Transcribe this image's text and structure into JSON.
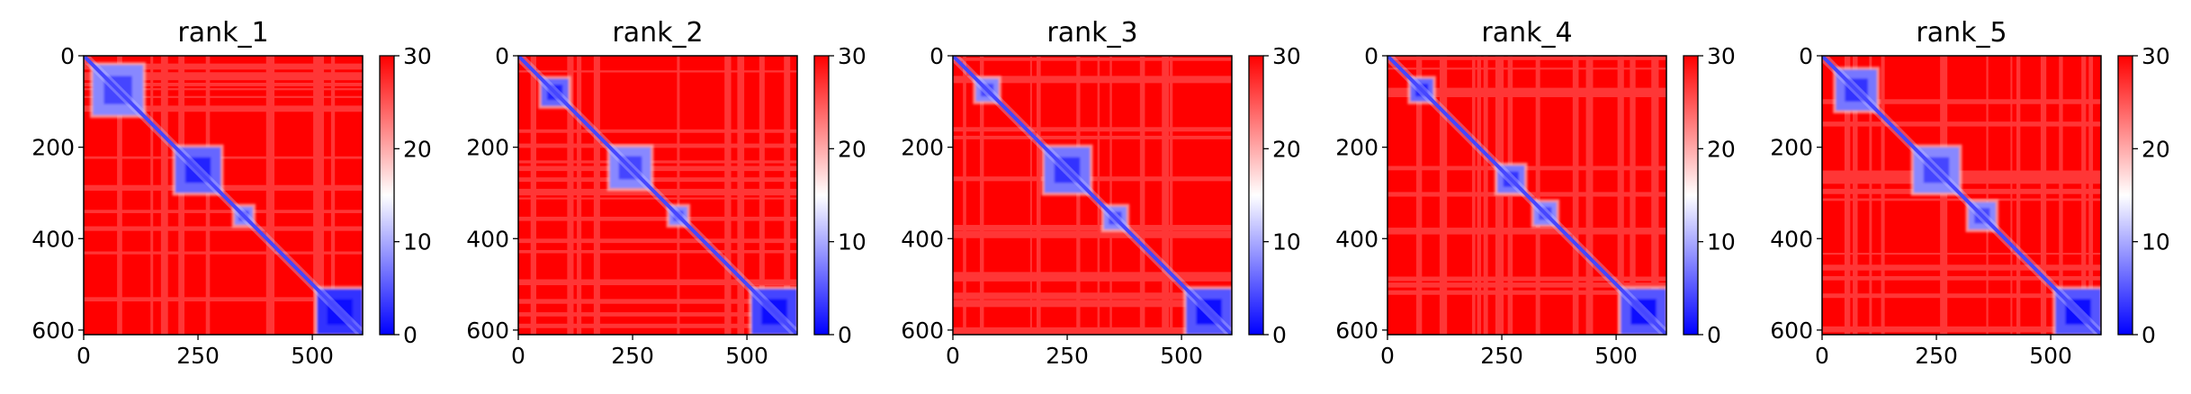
{
  "chart_data": [
    {
      "type": "heatmap",
      "title": "rank_1",
      "xlabel": "",
      "ylabel": "",
      "xlim": [
        0,
        610
      ],
      "ylim": [
        610,
        0
      ],
      "xticks": [
        "0",
        "250",
        "500"
      ],
      "xtick_values": [
        0,
        250,
        500
      ],
      "yticks": [
        "0",
        "200",
        "400",
        "600"
      ],
      "ytick_values": [
        0,
        200,
        400,
        600
      ],
      "colorbar": {
        "min": 0,
        "max": 30,
        "ticks": [
          "0",
          "10",
          "20",
          "30"
        ],
        "tick_values": [
          0,
          10,
          20,
          30
        ],
        "colormap": [
          "#0000ff",
          "#ffffff",
          "#ff0000"
        ]
      },
      "grid": false,
      "description_of_values": {
        "diagonal_value": 0,
        "background_value": 30,
        "low_value_blocks": [
          {
            "start": 20,
            "end": 130,
            "value": 8
          },
          {
            "start": 200,
            "end": 300,
            "value": 6
          },
          {
            "start": 330,
            "end": 370,
            "value": 8
          },
          {
            "start": 510,
            "end": 610,
            "value": 3
          }
        ]
      }
    },
    {
      "type": "heatmap",
      "title": "rank_2",
      "xlabel": "",
      "ylabel": "",
      "xlim": [
        0,
        610
      ],
      "ylim": [
        610,
        0
      ],
      "xticks": [
        "0",
        "250",
        "500"
      ],
      "xtick_values": [
        0,
        250,
        500
      ],
      "yticks": [
        "0",
        "200",
        "400",
        "600"
      ],
      "ytick_values": [
        0,
        200,
        400,
        600
      ],
      "colorbar": {
        "min": 0,
        "max": 30,
        "ticks": [
          "0",
          "10",
          "20",
          "30"
        ],
        "tick_values": [
          0,
          10,
          20,
          30
        ],
        "colormap": [
          "#0000ff",
          "#ffffff",
          "#ff0000"
        ]
      },
      "grid": false,
      "description_of_values": {
        "diagonal_value": 0,
        "background_value": 30,
        "low_value_blocks": [
          {
            "start": 50,
            "end": 110,
            "value": 6
          },
          {
            "start": 200,
            "end": 290,
            "value": 8
          },
          {
            "start": 330,
            "end": 370,
            "value": 8
          },
          {
            "start": 510,
            "end": 610,
            "value": 4
          }
        ]
      }
    },
    {
      "type": "heatmap",
      "title": "rank_3",
      "xlabel": "",
      "ylabel": "",
      "xlim": [
        0,
        610
      ],
      "ylim": [
        610,
        0
      ],
      "xticks": [
        "0",
        "250",
        "500"
      ],
      "xtick_values": [
        0,
        250,
        500
      ],
      "yticks": [
        "0",
        "200",
        "400",
        "600"
      ],
      "ytick_values": [
        0,
        200,
        400,
        600
      ],
      "colorbar": {
        "min": 0,
        "max": 30,
        "ticks": [
          "0",
          "10",
          "20",
          "30"
        ],
        "tick_values": [
          0,
          10,
          20,
          30
        ],
        "colormap": [
          "#0000ff",
          "#ffffff",
          "#ff0000"
        ]
      },
      "grid": false,
      "description_of_values": {
        "diagonal_value": 0,
        "background_value": 30,
        "low_value_blocks": [
          {
            "start": 50,
            "end": 100,
            "value": 8
          },
          {
            "start": 200,
            "end": 300,
            "value": 7
          },
          {
            "start": 330,
            "end": 380,
            "value": 8
          },
          {
            "start": 510,
            "end": 610,
            "value": 5
          }
        ]
      }
    },
    {
      "type": "heatmap",
      "title": "rank_4",
      "xlabel": "",
      "ylabel": "",
      "xlim": [
        0,
        610
      ],
      "ylim": [
        610,
        0
      ],
      "xticks": [
        "0",
        "250",
        "500"
      ],
      "xtick_values": [
        0,
        250,
        500
      ],
      "yticks": [
        "0",
        "200",
        "400",
        "600"
      ],
      "ytick_values": [
        0,
        200,
        400,
        600
      ],
      "colorbar": {
        "min": 0,
        "max": 30,
        "ticks": [
          "0",
          "10",
          "20",
          "30"
        ],
        "tick_values": [
          0,
          10,
          20,
          30
        ],
        "colormap": [
          "#0000ff",
          "#ffffff",
          "#ff0000"
        ]
      },
      "grid": false,
      "description_of_values": {
        "diagonal_value": 0,
        "background_value": 30,
        "low_value_blocks": [
          {
            "start": 50,
            "end": 100,
            "value": 6
          },
          {
            "start": 240,
            "end": 300,
            "value": 7
          },
          {
            "start": 320,
            "end": 370,
            "value": 8
          },
          {
            "start": 510,
            "end": 610,
            "value": 5
          }
        ]
      }
    },
    {
      "type": "heatmap",
      "title": "rank_5",
      "xlabel": "",
      "ylabel": "",
      "xlim": [
        0,
        610
      ],
      "ylim": [
        610,
        0
      ],
      "xticks": [
        "0",
        "250",
        "500"
      ],
      "xtick_values": [
        0,
        250,
        500
      ],
      "yticks": [
        "0",
        "200",
        "400",
        "600"
      ],
      "ytick_values": [
        0,
        200,
        400,
        600
      ],
      "colorbar": {
        "min": 0,
        "max": 30,
        "ticks": [
          "0",
          "10",
          "20",
          "30"
        ],
        "tick_values": [
          0,
          10,
          20,
          30
        ],
        "colormap": [
          "#0000ff",
          "#ffffff",
          "#ff0000"
        ]
      },
      "grid": false,
      "description_of_values": {
        "diagonal_value": 0,
        "background_value": 30,
        "low_value_blocks": [
          {
            "start": 30,
            "end": 120,
            "value": 7
          },
          {
            "start": 200,
            "end": 300,
            "value": 8
          },
          {
            "start": 320,
            "end": 380,
            "value": 8
          },
          {
            "start": 510,
            "end": 610,
            "value": 5
          }
        ]
      }
    }
  ]
}
